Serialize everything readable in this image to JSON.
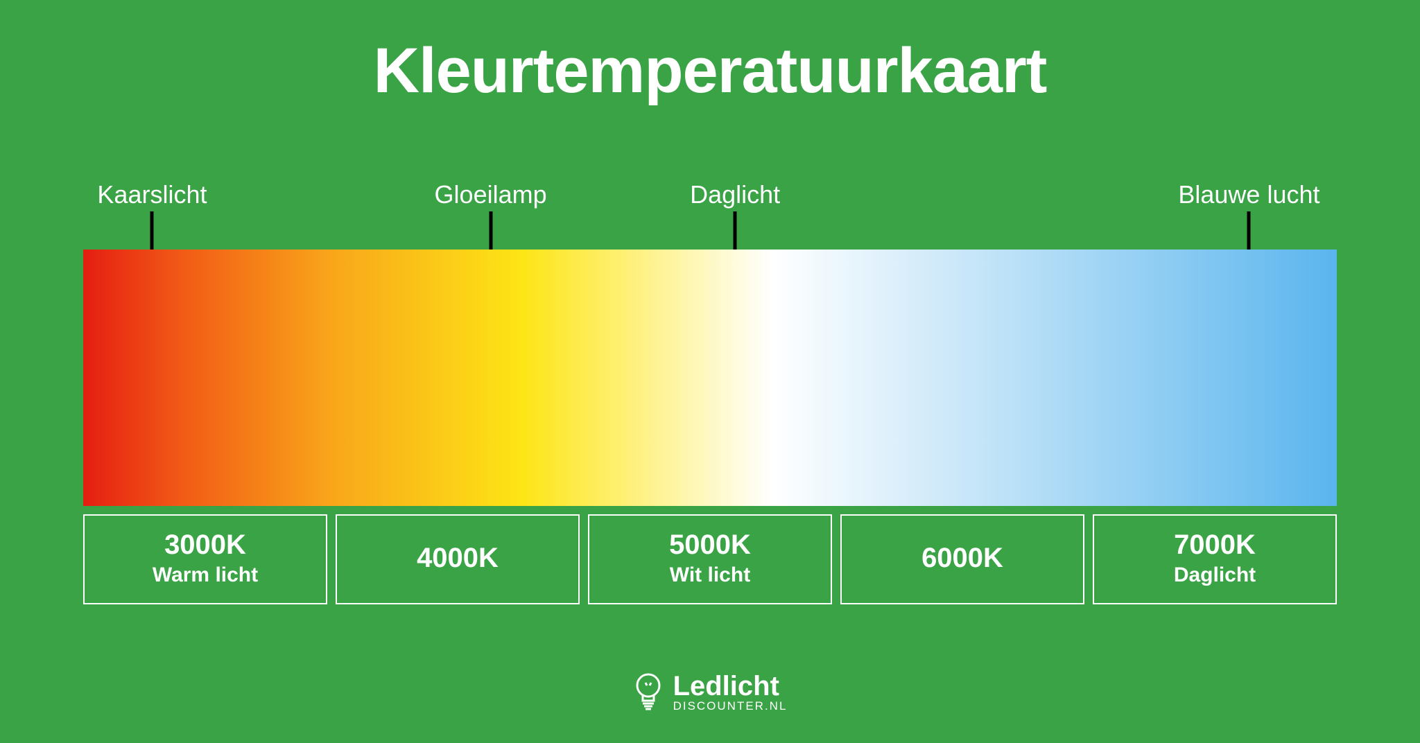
{
  "background_color": "#3aa346",
  "text_color": "#ffffff",
  "title": {
    "text": "Kleurtemperatuurkaart",
    "fontsize": 92
  },
  "top_labels": {
    "fontsize": 36,
    "items": [
      {
        "label": "Kaarslicht",
        "position_pct": 5.5
      },
      {
        "label": "Gloeilamp",
        "position_pct": 32.5
      },
      {
        "label": "Daglicht",
        "position_pct": 52.0
      },
      {
        "label": "Blauwe lucht",
        "position_pct": 93.0
      }
    ]
  },
  "gradient": {
    "stops": [
      {
        "color": "#e41e12",
        "pct": 0
      },
      {
        "color": "#f25b16",
        "pct": 8
      },
      {
        "color": "#f9a71a",
        "pct": 20
      },
      {
        "color": "#fde516",
        "pct": 35
      },
      {
        "color": "#ffffff",
        "pct": 55
      },
      {
        "color": "#b8dff7",
        "pct": 75
      },
      {
        "color": "#5ab5ee",
        "pct": 100
      }
    ]
  },
  "bottom_boxes": {
    "kelvin_fontsize": 40,
    "desc_fontsize": 30,
    "items": [
      {
        "kelvin": "3000K",
        "desc": "Warm licht"
      },
      {
        "kelvin": "4000K",
        "desc": ""
      },
      {
        "kelvin": "5000K",
        "desc": "Wit licht"
      },
      {
        "kelvin": "6000K",
        "desc": ""
      },
      {
        "kelvin": "7000K",
        "desc": "Daglicht"
      }
    ]
  },
  "logo": {
    "main": "Ledlicht",
    "sub": "DISCOUNTER.NL",
    "main_fontsize": 40,
    "sub_fontsize": 17
  }
}
